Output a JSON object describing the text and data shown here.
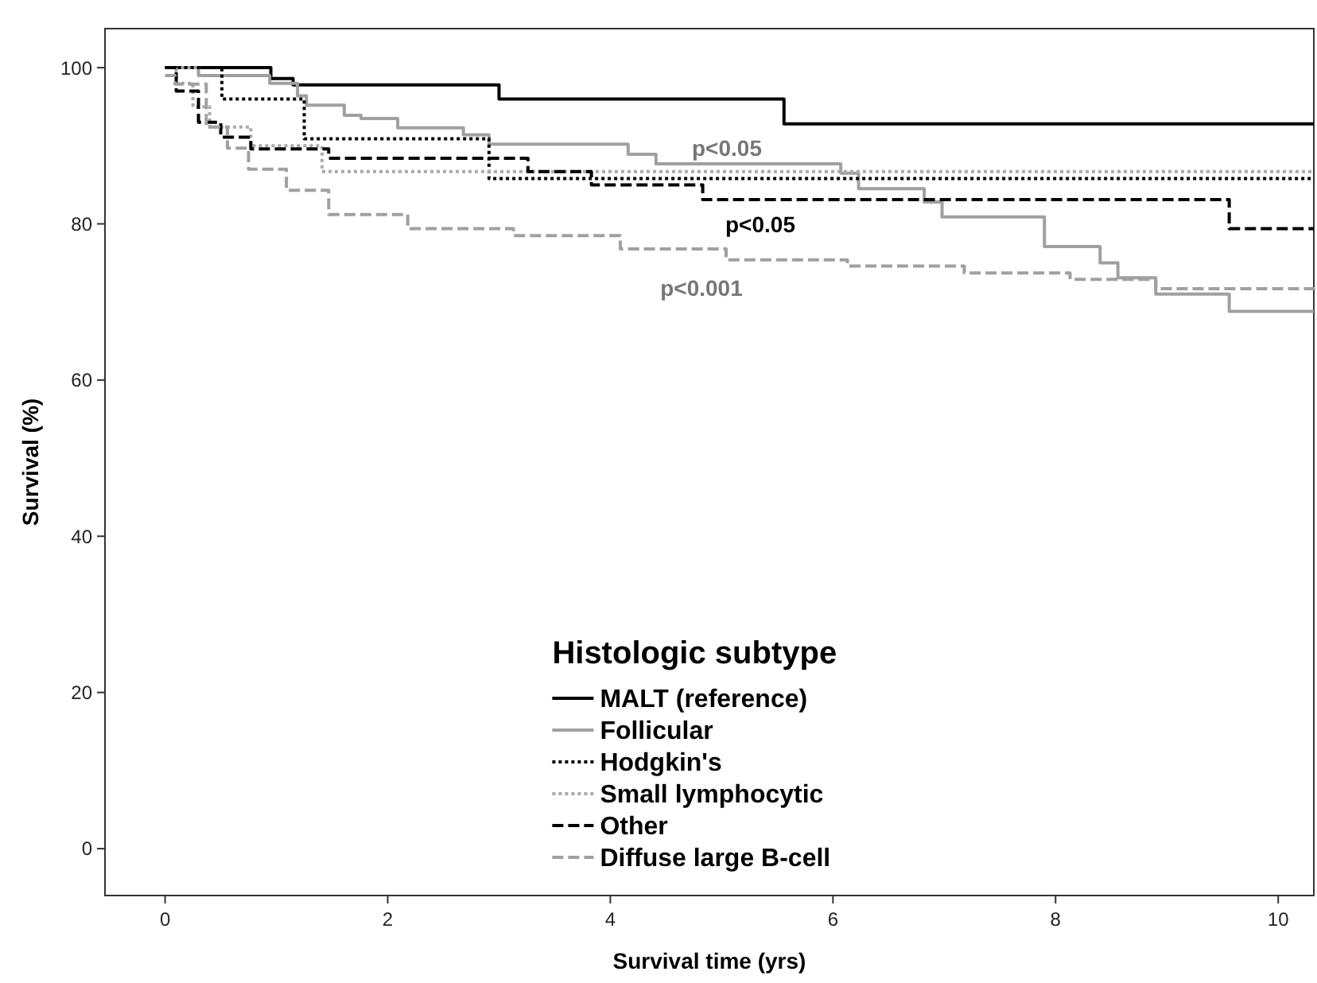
{
  "chart_data": {
    "type": "step",
    "xlabel": "Survival time (yrs)",
    "ylabel": "Survival (%)",
    "xlim": [
      -0.54,
      10.32
    ],
    "ylim": [
      -6,
      105
    ],
    "xticks": [
      0,
      2,
      4,
      6,
      8,
      10
    ],
    "yticks": [
      0,
      20,
      40,
      60,
      80,
      100
    ],
    "grid": false,
    "legend": "bottom",
    "legend_title": "Histologic subtype",
    "marker": "none",
    "series": [
      {
        "name": "MALT (reference)",
        "color": "#000000",
        "line_style": "solid",
        "x": [
          0,
          0.95,
          1.15,
          3.0,
          5.56,
          10.32
        ],
        "values": [
          100,
          98.6,
          97.8,
          96.0,
          92.8,
          92.8
        ]
      },
      {
        "name": "Follicular",
        "color": "#a0a0a0",
        "line_style": "solid",
        "x": [
          0,
          0.3,
          0.94,
          1.19,
          1.27,
          1.61,
          1.76,
          2.09,
          2.68,
          2.91,
          4.16,
          4.41,
          6.07,
          6.23,
          6.82,
          6.98,
          7.9,
          8.4,
          8.56,
          8.9,
          9.56,
          10.32
        ],
        "values": [
          100,
          99,
          98,
          96.4,
          95.2,
          93.9,
          93.5,
          92.3,
          91.4,
          90.2,
          88.9,
          87.7,
          86.5,
          84.5,
          82.8,
          80.9,
          77.1,
          75.0,
          73.1,
          71.0,
          68.8,
          68.8
        ]
      },
      {
        "name": "Hodgkin's",
        "color": "#000000",
        "line_style": "dotted",
        "x": [
          0,
          0.51,
          1.25,
          2.91,
          10.32
        ],
        "values": [
          100,
          96.0,
          90.9,
          85.8,
          85.8
        ]
      },
      {
        "name": "Small lymphocytic",
        "color": "#aaaaaa",
        "line_style": "dotted",
        "x": [
          0,
          0.1,
          0.25,
          0.4,
          0.77,
          1.41,
          10.32
        ],
        "values": [
          100,
          98,
          95,
          92.4,
          90,
          86.7,
          86.7
        ]
      },
      {
        "name": "Other",
        "color": "#000000",
        "line_style": "dashed",
        "x": [
          0,
          0.1,
          0.3,
          0.5,
          0.77,
          1.47,
          3.26,
          3.83,
          4.83,
          9.56,
          10.32
        ],
        "values": [
          100,
          97,
          93,
          91.1,
          89.6,
          88.4,
          86.7,
          85.0,
          83.1,
          79.4,
          79.4
        ]
      },
      {
        "name": "Diffuse large B-cell",
        "color": "#a0a0a0",
        "line_style": "dashed",
        "x": [
          0,
          0.09,
          0.37,
          0.56,
          0.75,
          1.09,
          1.47,
          2.18,
          3.13,
          4.09,
          5.04,
          6.13,
          7.18,
          8.13,
          8.9,
          10.32
        ],
        "values": [
          99,
          97.9,
          92.4,
          89.7,
          87.0,
          84.3,
          81.2,
          79.4,
          78.5,
          76.8,
          75.4,
          74.6,
          73.7,
          72.9,
          71.7,
          71.2
        ]
      }
    ],
    "annotations": [
      "p<0.05",
      "p<0.05",
      "p<0.001"
    ]
  }
}
